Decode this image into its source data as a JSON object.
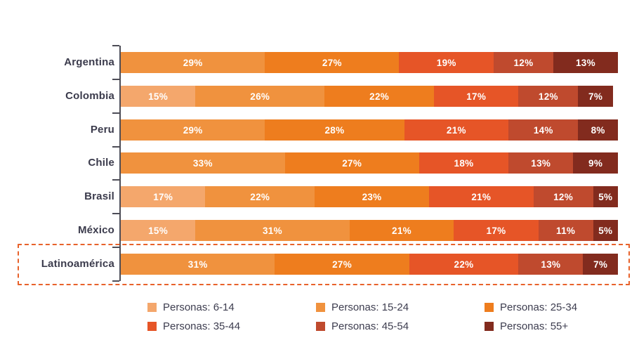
{
  "chart_data": {
    "type": "bar",
    "orientation": "horizontal",
    "stacked": true,
    "unit": "%",
    "axis_max": 100,
    "grid": false,
    "legend_position": "bottom",
    "categories": [
      "Argentina",
      "Colombia",
      "Peru",
      "Chile",
      "Brasil",
      "México",
      "Latinoamérica"
    ],
    "series": [
      {
        "name": "Personas: 6-14",
        "color": "#f4a76c",
        "values": [
          0,
          15,
          0,
          0,
          17,
          15,
          0
        ]
      },
      {
        "name": "Personas: 15-24",
        "color": "#f0923e",
        "values": [
          29,
          26,
          29,
          33,
          22,
          31,
          31
        ]
      },
      {
        "name": "Personas: 25-34",
        "color": "#ee7d1e",
        "values": [
          27,
          22,
          28,
          27,
          23,
          21,
          27
        ]
      },
      {
        "name": "Personas: 35-44",
        "color": "#e65527",
        "values": [
          19,
          17,
          21,
          18,
          21,
          17,
          22
        ]
      },
      {
        "name": "Personas: 45-54",
        "color": "#bf4a2e",
        "values": [
          12,
          12,
          14,
          13,
          12,
          11,
          13
        ]
      },
      {
        "name": "Personas: 55+",
        "color": "#822b1e",
        "values": [
          13,
          7,
          8,
          9,
          5,
          5,
          7
        ]
      }
    ],
    "data_labels": "white bold percentages inside segments",
    "highlighted_category": "Latinoamérica"
  },
  "styles": {
    "label_color": "#3b3b4c",
    "legend_text_color": "#3d3d4f",
    "axis_color": "#4d4d57",
    "value_text_color": "#ffffff",
    "highlight_border_color": "#e8622b",
    "background": "#ffffff"
  }
}
